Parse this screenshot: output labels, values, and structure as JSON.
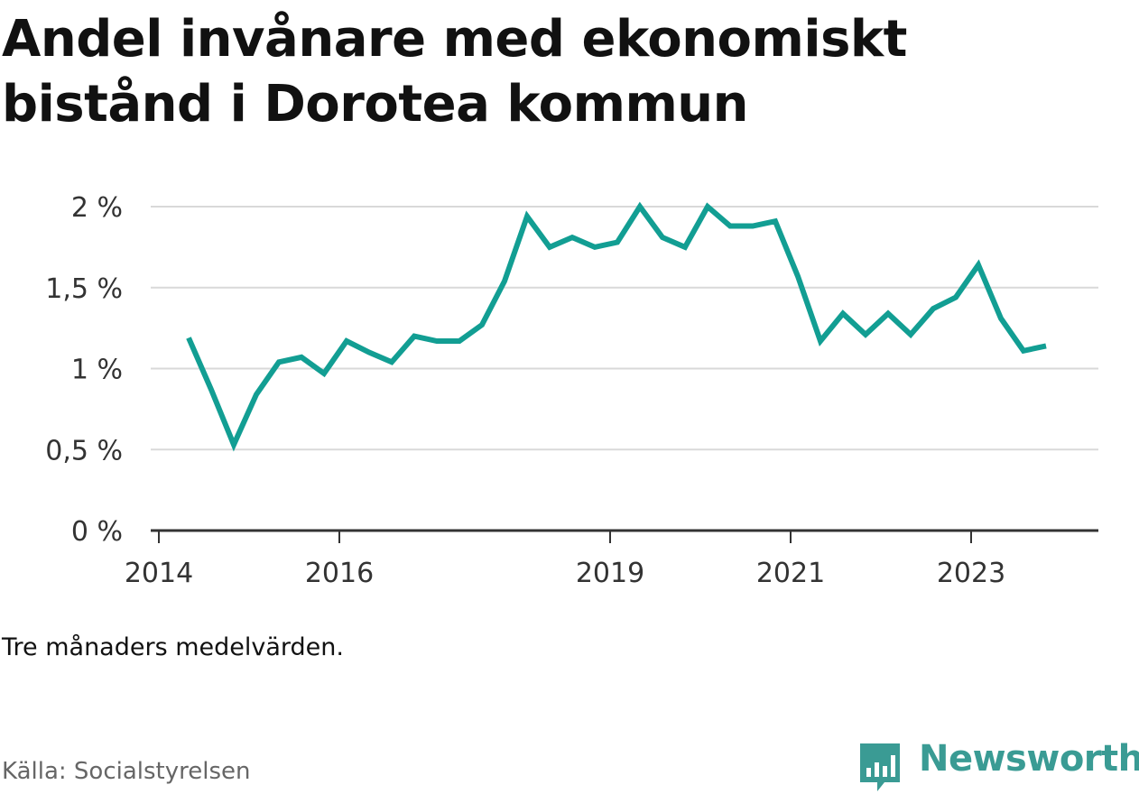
{
  "title": "Andel invånare med ekonomiskt bistånd i Dorotea kommun",
  "note": "Tre månaders medelvärden.",
  "source": "Källa: Socialstyrelsen",
  "brand": {
    "name": "Newsworthy",
    "color": "#3a9b94"
  },
  "chart_data": {
    "type": "line",
    "xlabel": "",
    "ylabel": "",
    "xlim": [
      2013.91,
      2024.41
    ],
    "ylim": [
      0,
      2.0
    ],
    "x_ticks": [
      2014,
      2016,
      2019,
      2021,
      2023
    ],
    "y_ticks": [
      0,
      0.5,
      1,
      1.5,
      2
    ],
    "y_tick_labels": [
      "0 %",
      "0,5 %",
      "1 %",
      "1,5 %",
      "2 %"
    ],
    "grid": true,
    "legend": "none",
    "line_color": "#129e93",
    "series": [
      {
        "x": [
          2014.33,
          2014.58,
          2014.83,
          2015.08,
          2015.33,
          2015.58,
          2015.83,
          2016.08,
          2016.33,
          2016.58,
          2016.83,
          2017.08,
          2017.33,
          2017.58,
          2017.83,
          2018.08,
          2018.33,
          2018.58,
          2018.83,
          2019.08,
          2019.33,
          2019.58,
          2019.83,
          2020.08,
          2020.33,
          2020.58,
          2020.83,
          2021.08,
          2021.33,
          2021.58,
          2021.83,
          2022.08,
          2022.33,
          2022.58,
          2022.83,
          2023.08,
          2023.33,
          2023.58,
          2023.83
        ],
        "y": [
          1.19,
          0.87,
          0.53,
          0.84,
          1.04,
          1.07,
          0.97,
          1.17,
          1.1,
          1.04,
          1.2,
          1.17,
          1.17,
          1.27,
          1.54,
          1.94,
          1.75,
          1.81,
          1.75,
          1.78,
          2.0,
          1.81,
          1.75,
          2.0,
          1.88,
          1.88,
          1.91,
          1.57,
          1.17,
          1.34,
          1.21,
          1.34,
          1.21,
          1.37,
          1.44,
          1.64,
          1.31,
          1.11,
          1.14
        ]
      }
    ]
  }
}
